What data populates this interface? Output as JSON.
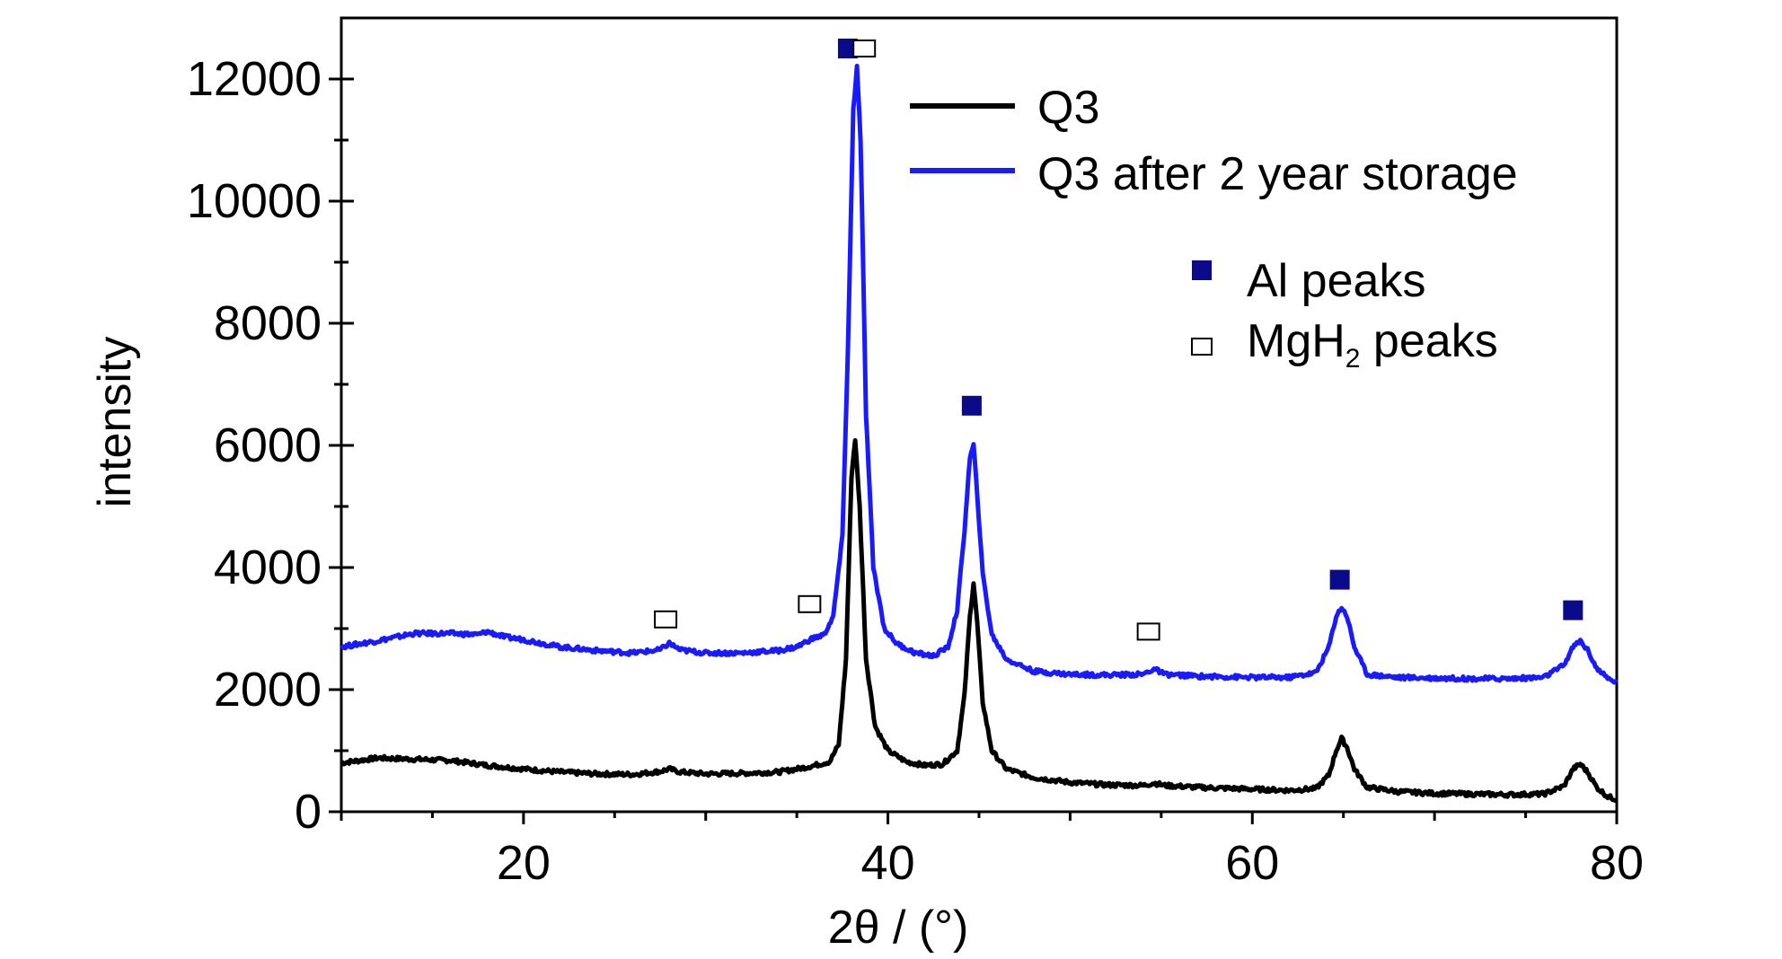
{
  "chart_data": {
    "type": "line",
    "xlabel": "2θ / (°)",
    "ylabel": "intensity",
    "xlim": [
      10,
      80
    ],
    "ylim": [
      0,
      13000
    ],
    "x_ticks": [
      20,
      40,
      60,
      80
    ],
    "y_ticks": [
      0,
      2000,
      4000,
      6000,
      8000,
      10000,
      12000
    ],
    "series": [
      {
        "name": "Q3",
        "color": "#000000",
        "points": [
          [
            10,
            800
          ],
          [
            12,
            880
          ],
          [
            14,
            860
          ],
          [
            16,
            840
          ],
          [
            18,
            760
          ],
          [
            20,
            700
          ],
          [
            22,
            650
          ],
          [
            24,
            620
          ],
          [
            26,
            610
          ],
          [
            27.5,
            660
          ],
          [
            28,
            700
          ],
          [
            28.6,
            650
          ],
          [
            30,
            620
          ],
          [
            32,
            630
          ],
          [
            34,
            650
          ],
          [
            35,
            700
          ],
          [
            36,
            760
          ],
          [
            36.8,
            820
          ],
          [
            37.3,
            1100
          ],
          [
            37.7,
            2500
          ],
          [
            38.0,
            5500
          ],
          [
            38.2,
            6100
          ],
          [
            38.45,
            5000
          ],
          [
            38.8,
            2500
          ],
          [
            39.3,
            1400
          ],
          [
            40,
            1000
          ],
          [
            41,
            820
          ],
          [
            42,
            760
          ],
          [
            43,
            780
          ],
          [
            43.8,
            1000
          ],
          [
            44.2,
            1900
          ],
          [
            44.5,
            3200
          ],
          [
            44.7,
            3750
          ],
          [
            44.9,
            3100
          ],
          [
            45.2,
            1800
          ],
          [
            45.7,
            1000
          ],
          [
            46.5,
            700
          ],
          [
            48,
            560
          ],
          [
            50,
            480
          ],
          [
            52,
            440
          ],
          [
            54,
            430
          ],
          [
            54.6,
            470
          ],
          [
            55.2,
            430
          ],
          [
            57,
            400
          ],
          [
            60,
            370
          ],
          [
            62,
            350
          ],
          [
            63.5,
            380
          ],
          [
            64.2,
            600
          ],
          [
            64.6,
            1000
          ],
          [
            64.9,
            1200
          ],
          [
            65.2,
            1050
          ],
          [
            65.6,
            700
          ],
          [
            66.3,
            400
          ],
          [
            68,
            330
          ],
          [
            70,
            300
          ],
          [
            72,
            290
          ],
          [
            74,
            280
          ],
          [
            76,
            290
          ],
          [
            77.1,
            420
          ],
          [
            77.6,
            700
          ],
          [
            78.0,
            780
          ],
          [
            78.4,
            650
          ],
          [
            78.9,
            400
          ],
          [
            79.5,
            250
          ],
          [
            80,
            200
          ]
        ]
      },
      {
        "name": "Q3 after 2 year storage",
        "color": "#1a1aff",
        "points": [
          [
            10,
            2700
          ],
          [
            12,
            2800
          ],
          [
            14,
            2920
          ],
          [
            16,
            2920
          ],
          [
            17.5,
            2900
          ],
          [
            18,
            2950
          ],
          [
            19,
            2860
          ],
          [
            20,
            2820
          ],
          [
            22,
            2700
          ],
          [
            24,
            2640
          ],
          [
            26,
            2600
          ],
          [
            27.5,
            2650
          ],
          [
            28,
            2760
          ],
          [
            28.6,
            2650
          ],
          [
            30,
            2600
          ],
          [
            32,
            2600
          ],
          [
            34,
            2640
          ],
          [
            35,
            2700
          ],
          [
            35.8,
            2830
          ],
          [
            36.5,
            2900
          ],
          [
            37,
            3200
          ],
          [
            37.5,
            4500
          ],
          [
            37.8,
            7500
          ],
          [
            38.1,
            11500
          ],
          [
            38.3,
            12200
          ],
          [
            38.5,
            11000
          ],
          [
            38.8,
            6500
          ],
          [
            39.2,
            4000
          ],
          [
            39.8,
            3000
          ],
          [
            40.5,
            2750
          ],
          [
            41.5,
            2600
          ],
          [
            42.5,
            2550
          ],
          [
            43.3,
            2700
          ],
          [
            43.8,
            3300
          ],
          [
            44.2,
            4600
          ],
          [
            44.5,
            5800
          ],
          [
            44.7,
            6000
          ],
          [
            44.9,
            5200
          ],
          [
            45.2,
            3900
          ],
          [
            45.7,
            2900
          ],
          [
            46.5,
            2500
          ],
          [
            48,
            2300
          ],
          [
            50,
            2250
          ],
          [
            52,
            2240
          ],
          [
            54,
            2250
          ],
          [
            54.6,
            2340
          ],
          [
            55.2,
            2250
          ],
          [
            57,
            2220
          ],
          [
            60,
            2200
          ],
          [
            62,
            2200
          ],
          [
            63.5,
            2280
          ],
          [
            64.2,
            2700
          ],
          [
            64.6,
            3200
          ],
          [
            64.9,
            3350
          ],
          [
            65.2,
            3200
          ],
          [
            65.6,
            2700
          ],
          [
            66.3,
            2250
          ],
          [
            68,
            2200
          ],
          [
            70,
            2190
          ],
          [
            72,
            2180
          ],
          [
            74,
            2180
          ],
          [
            76,
            2200
          ],
          [
            77.1,
            2400
          ],
          [
            77.6,
            2700
          ],
          [
            78.0,
            2800
          ],
          [
            78.4,
            2650
          ],
          [
            78.9,
            2350
          ],
          [
            79.5,
            2180
          ],
          [
            80,
            2120
          ]
        ]
      }
    ],
    "legend": {
      "position": "top-right",
      "entries": [
        "Q3",
        "Q3 after 2 year storage"
      ]
    },
    "markers_legend": {
      "al": "Al peaks",
      "mgh2_prefix": "MgH",
      "mgh2_sub": "2",
      "mgh2_suffix": " peaks"
    },
    "peak_markers": [
      {
        "kind": "al",
        "x": 37.8,
        "y": 12500
      },
      {
        "kind": "mgh2",
        "x": 38.7,
        "y": 12500
      },
      {
        "kind": "al",
        "x": 44.6,
        "y": 6650
      },
      {
        "kind": "al",
        "x": 64.8,
        "y": 3800
      },
      {
        "kind": "al",
        "x": 77.6,
        "y": 3300
      },
      {
        "kind": "mgh2",
        "x": 27.8,
        "y": 3150
      },
      {
        "kind": "mgh2",
        "x": 35.7,
        "y": 3400
      },
      {
        "kind": "mgh2",
        "x": 54.3,
        "y": 2950
      }
    ],
    "marker_colors": {
      "al": "#0a0a8a",
      "mgh2_border": "#000000"
    }
  }
}
